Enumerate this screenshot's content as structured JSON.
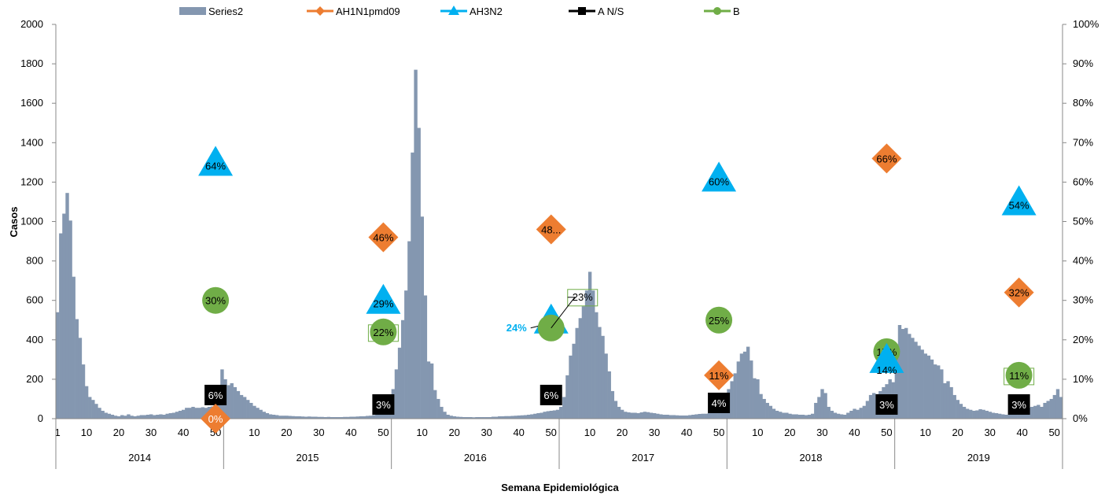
{
  "chart_data": {
    "type": "bar",
    "ylabel": "Casos",
    "xlabel": "Semana Epidemiológica",
    "ylim": [
      0,
      2000
    ],
    "y2lim": [
      0,
      100
    ],
    "y_ticks": [
      "0",
      "200",
      "400",
      "600",
      "800",
      "1000",
      "1200",
      "1400",
      "1600",
      "1800",
      "2000"
    ],
    "y2_ticks": [
      "0%",
      "10%",
      "20%",
      "30%",
      "40%",
      "50%",
      "60%",
      "70%",
      "80%",
      "90%",
      "100%"
    ],
    "week_ticks": [
      "1",
      "10",
      "20",
      "30",
      "40",
      "50",
      "10",
      "20",
      "30",
      "40",
      "50",
      "10",
      "20",
      "30",
      "40",
      "50",
      "10",
      "20",
      "30",
      "40",
      "50",
      "10",
      "20",
      "30",
      "40",
      "50",
      "10",
      "20",
      "30",
      "40",
      "50"
    ],
    "years": [
      "2014",
      "2015",
      "2016",
      "2017",
      "2018",
      "2019"
    ],
    "weeks_per_year": [
      52,
      52,
      52,
      52,
      52,
      52
    ],
    "legend": [
      {
        "name": "Series2",
        "color": "#8497b0",
        "marker": "bar"
      },
      {
        "name": "AH1N1pmd09",
        "color": "#ed7d31",
        "marker": "diamond"
      },
      {
        "name": "AH3N2",
        "color": "#00b0f0",
        "marker": "triangle"
      },
      {
        "name": "A N/S",
        "color": "#000000",
        "marker": "square"
      },
      {
        "name": "B",
        "color": "#70ad47",
        "marker": "circle"
      }
    ],
    "weekly_cases": [
      540,
      940,
      1040,
      1145,
      1005,
      720,
      505,
      410,
      275,
      165,
      110,
      95,
      75,
      55,
      40,
      30,
      25,
      20,
      15,
      12,
      18,
      15,
      22,
      15,
      12,
      15,
      18,
      18,
      20,
      22,
      18,
      20,
      22,
      20,
      25,
      28,
      30,
      35,
      40,
      45,
      55,
      55,
      60,
      55,
      55,
      58,
      55,
      60,
      62,
      75,
      90,
      250,
      200,
      170,
      180,
      160,
      140,
      120,
      110,
      95,
      80,
      65,
      55,
      45,
      35,
      28,
      22,
      20,
      18,
      15,
      15,
      15,
      14,
      13,
      12,
      12,
      11,
      10,
      11,
      10,
      10,
      9,
      9,
      8,
      9,
      8,
      8,
      8,
      8,
      9,
      9,
      10,
      10,
      11,
      12,
      12,
      14,
      15,
      18,
      22,
      28,
      40,
      60,
      90,
      150,
      250,
      360,
      500,
      650,
      900,
      1350,
      1770,
      1475,
      1025,
      625,
      290,
      280,
      145,
      100,
      60,
      35,
      20,
      15,
      12,
      10,
      9,
      8,
      8,
      8,
      7,
      8,
      8,
      8,
      8,
      8,
      10,
      10,
      12,
      12,
      13,
      13,
      14,
      15,
      16,
      17,
      18,
      20,
      22,
      25,
      28,
      30,
      35,
      38,
      40,
      42,
      45,
      60,
      110,
      220,
      320,
      380,
      460,
      510,
      570,
      650,
      745,
      650,
      540,
      465,
      420,
      330,
      240,
      140,
      90,
      60,
      45,
      35,
      32,
      30,
      30,
      28,
      32,
      35,
      33,
      30,
      28,
      25,
      22,
      20,
      20,
      18,
      18,
      17,
      16,
      16,
      16,
      18,
      20,
      22,
      24,
      25,
      25,
      28,
      30,
      35,
      42,
      55,
      60,
      150,
      190,
      230,
      290,
      330,
      340,
      365,
      295,
      205,
      200,
      125,
      100,
      80,
      65,
      50,
      40,
      35,
      30,
      30,
      25,
      22,
      22,
      20,
      20,
      18,
      20,
      25,
      80,
      110,
      150,
      130,
      60,
      40,
      30,
      25,
      22,
      20,
      30,
      40,
      50,
      45,
      55,
      65,
      90,
      120,
      130,
      125,
      140,
      160,
      175,
      200,
      185,
      340,
      475,
      455,
      460,
      430,
      410,
      390,
      370,
      350,
      330,
      320,
      300,
      275,
      270,
      250,
      180,
      190,
      160,
      120,
      95,
      75,
      60,
      50,
      45,
      40,
      42,
      48,
      45,
      40,
      35,
      30,
      28,
      25,
      22,
      20,
      20,
      20,
      24,
      30,
      38,
      45,
      55,
      60,
      65,
      70,
      60,
      80,
      90,
      100,
      120,
      150,
      110
    ],
    "markers": [
      {
        "series": "AH3N2",
        "year_index": 0,
        "week": 50,
        "pct": 64,
        "label": "64%"
      },
      {
        "series": "B",
        "year_index": 0,
        "week": 50,
        "pct": 30,
        "label": "30%"
      },
      {
        "series": "A N/S",
        "year_index": 0,
        "week": 50,
        "pct": 6,
        "label": "6%"
      },
      {
        "series": "AH1N1pmd09",
        "year_index": 0,
        "week": 50,
        "pct": 0,
        "label": "0%"
      },
      {
        "series": "AH1N1pmd09",
        "year_index": 1,
        "week": 50,
        "pct": 46,
        "label": "46%"
      },
      {
        "series": "AH3N2",
        "year_index": 1,
        "week": 50,
        "pct": 29,
        "label": "29%"
      },
      {
        "series": "B",
        "year_index": 1,
        "week": 50,
        "pct": 22,
        "label": "22%"
      },
      {
        "series": "A N/S",
        "year_index": 1,
        "week": 50,
        "pct": 3,
        "label": "3%"
      },
      {
        "series": "AH1N1pmd09",
        "year_index": 2,
        "week": 50,
        "pct": 48,
        "label": "48..."
      },
      {
        "series": "AH3N2",
        "year_index": 2,
        "week": 50,
        "pct": 24,
        "label": "24%"
      },
      {
        "series": "B",
        "year_index": 2,
        "week": 50,
        "pct": 23,
        "label": "23%"
      },
      {
        "series": "A N/S",
        "year_index": 2,
        "week": 50,
        "pct": 6,
        "label": "6%"
      },
      {
        "series": "AH3N2",
        "year_index": 3,
        "week": 50,
        "pct": 60,
        "label": "60%"
      },
      {
        "series": "B",
        "year_index": 3,
        "week": 50,
        "pct": 25,
        "label": "25%"
      },
      {
        "series": "AH1N1pmd09",
        "year_index": 3,
        "week": 50,
        "pct": 11,
        "label": "11%"
      },
      {
        "series": "A N/S",
        "year_index": 3,
        "week": 50,
        "pct": 4,
        "label": "4%"
      },
      {
        "series": "AH1N1pmd09",
        "year_index": 4,
        "week": 50,
        "pct": 66,
        "label": "66%"
      },
      {
        "series": "B",
        "year_index": 4,
        "week": 50,
        "pct": 17,
        "label": "17%"
      },
      {
        "series": "AH3N2",
        "year_index": 4,
        "week": 50,
        "pct": 14,
        "label": "14%"
      },
      {
        "series": "A N/S",
        "year_index": 4,
        "week": 50,
        "pct": 3,
        "label": "3%"
      },
      {
        "series": "AH3N2",
        "year_index": 5,
        "week": 39,
        "pct": 54,
        "label": "54%"
      },
      {
        "series": "AH1N1pmd09",
        "year_index": 5,
        "week": 39,
        "pct": 32,
        "label": "32%"
      },
      {
        "series": "B",
        "year_index": 5,
        "week": 39,
        "pct": 11,
        "label": "11%"
      },
      {
        "series": "A N/S",
        "year_index": 5,
        "week": 39,
        "pct": 3,
        "label": "3%"
      }
    ]
  }
}
